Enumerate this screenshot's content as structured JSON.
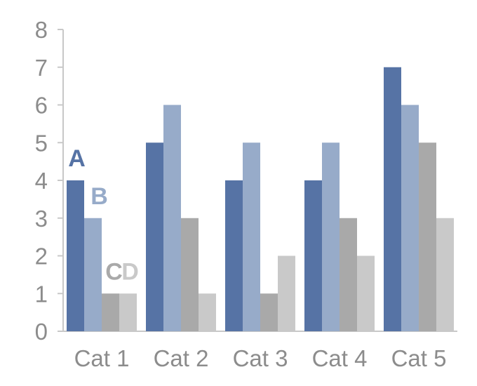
{
  "chart_data": {
    "type": "bar",
    "title": "",
    "xlabel": "",
    "ylabel": "",
    "categories": [
      "Cat 1",
      "Cat 2",
      "Cat 3",
      "Cat 4",
      "Cat 5"
    ],
    "yticks": [
      "0",
      "1",
      "2",
      "3",
      "4",
      "5",
      "6",
      "7",
      "8"
    ],
    "ylim": [
      0,
      8
    ],
    "grid": false,
    "legend": "none",
    "series": [
      {
        "name": "A",
        "color": "#5673a5",
        "values": [
          4,
          5,
          4,
          4,
          7
        ]
      },
      {
        "name": "B",
        "color": "#97abc9",
        "values": [
          3,
          6,
          5,
          5,
          6
        ]
      },
      {
        "name": "C",
        "color": "#a9a9a9",
        "values": [
          1,
          3,
          1,
          3,
          5
        ]
      },
      {
        "name": "D",
        "color": "#c9c9c9",
        "values": [
          1,
          1,
          2,
          2,
          3
        ]
      }
    ]
  }
}
